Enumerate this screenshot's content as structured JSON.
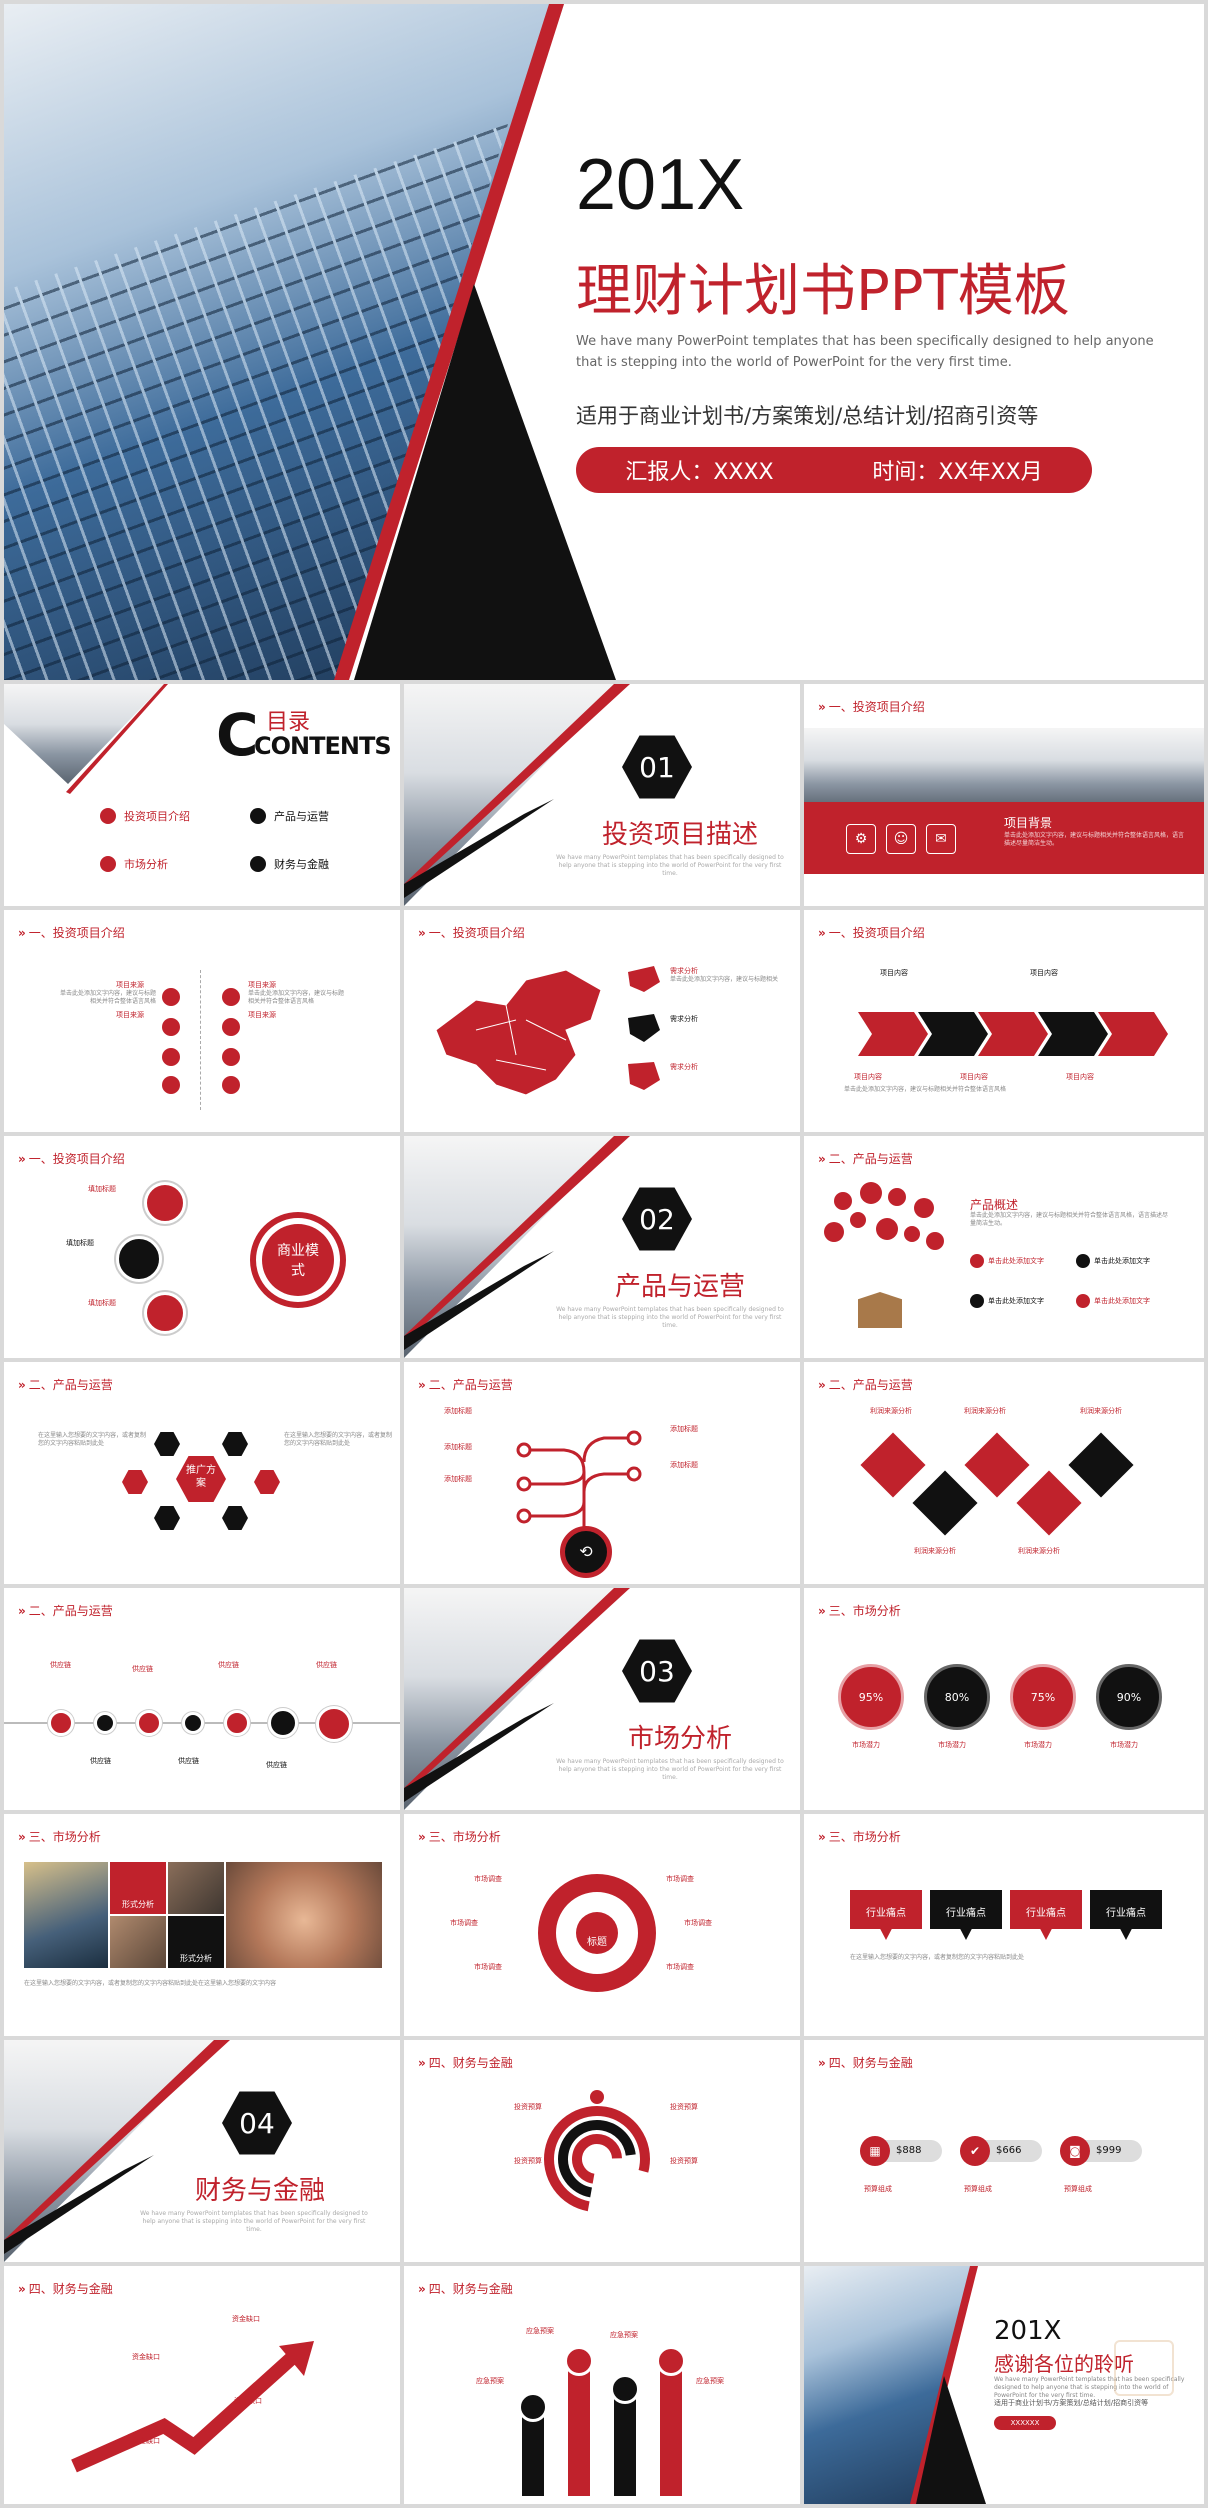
{
  "cover": {
    "year": "201X",
    "title": "理财计划书PPT模板",
    "desc": "We have many PowerPoint templates that has been specifically designed to help anyone that is stepping into the world of PowerPoint for the very first time.",
    "subtitle": "适用于商业计划书/方案策划/总结计划/招商引资等",
    "reporter": "汇报人：XXXX",
    "time": "时间：XX年XX月"
  },
  "toc": {
    "title1": "目录",
    "title2": "CONTENTS",
    "items": [
      "投资项目介绍",
      "产品与运营",
      "市场分析",
      "财务与金融"
    ]
  },
  "sections": [
    {
      "num": "01",
      "title": "投资项目描述"
    },
    {
      "num": "02",
      "title": "产品与运营"
    },
    {
      "num": "03",
      "title": "市场分析"
    },
    {
      "num": "04",
      "title": "财务与金融"
    }
  ],
  "headers": {
    "h1": "一、投资项目介绍",
    "h2": "二、产品与运营",
    "h3": "三、市场分析",
    "h4": "四、财务与金融"
  },
  "slide_bg": {
    "label": "项目背景"
  },
  "slide_src": {
    "label": "项目来源"
  },
  "slide_map": {
    "label": "需求分析"
  },
  "slide_arrows": {
    "label": "项目内容"
  },
  "slide_model": {
    "center": "商业模式",
    "label": "填加标题"
  },
  "slide_prod": {
    "title": "产品概述",
    "label": "单击此处添加文字"
  },
  "slide_hex": {
    "center": "推广方案"
  },
  "slide_tree": {
    "label": "添加标题"
  },
  "slide_diamond": {
    "label": "利润来源分析"
  },
  "slide_chain": {
    "label": "供应链"
  },
  "slide_pct": {
    "values": [
      "95%",
      "80%",
      "75%",
      "90%"
    ],
    "label": "市场潜力"
  },
  "slide_photo": {
    "tag1": "形式分析",
    "tag2": "形式分析"
  },
  "slide_ring": {
    "center": "标题",
    "label": "市场调查"
  },
  "slide_tabs": {
    "label": "行业痛点"
  },
  "slide_fin1": {
    "label": "投资预算"
  },
  "slide_fin2": {
    "prices": [
      "$888",
      "$666",
      "$999"
    ],
    "label": "预算组成"
  },
  "slide_fin3": {
    "label": "资金缺口"
  },
  "slide_fin4": {
    "label": "应急预案"
  },
  "end": {
    "year": "201X",
    "title": "感谢各位的聆听",
    "sub": "适用于商业计划书/方案策划/总结计划/招商引资等",
    "btn": "XXXXXX"
  }
}
